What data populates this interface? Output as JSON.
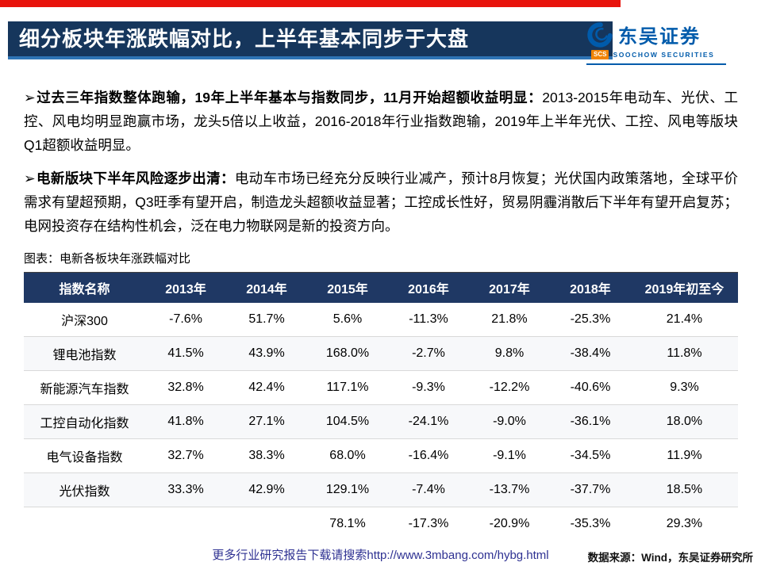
{
  "header": {
    "title": "细分板块年涨跌幅对比，上半年基本同步于大盘"
  },
  "logo": {
    "name": "东吴证券",
    "badge": "SCS",
    "subtitle": "SOOCHOW SECURITIES"
  },
  "bullets": [
    {
      "marker": "➢",
      "lead": "过去三年指数整体跑输，19年上半年基本与指数同步，11月开始超额收益明显：",
      "body": "2013-2015年电动车、光伏、工控、风电均明显跑赢市场，龙头5倍以上收益，2016-2018年行业指数跑输，2019年上半年光伏、工控、风电等版块Q1超额收益明显。"
    },
    {
      "marker": "➢",
      "lead": "电新版块下半年风险逐步出清：",
      "body": "电动车市场已经充分反映行业减产，预计8月恢复；光伏国内政策落地，全球平价需求有望超预期，Q3旺季有望开启，制造龙头超额收益显著；工控成长性好，贸易阴霾消散后下半年有望开启复苏；电网投资存在结构性机会，泛在电力物联网是新的投资方向。"
    }
  ],
  "table": {
    "caption": "图表：电新各板块年涨跌幅对比",
    "headers": [
      "指数名称",
      "2013年",
      "2014年",
      "2015年",
      "2016年",
      "2017年",
      "2018年",
      "2019年初至今"
    ],
    "rows": [
      [
        "沪深300",
        "-7.6%",
        "51.7%",
        "5.6%",
        "-11.3%",
        "21.8%",
        "-25.3%",
        "21.4%"
      ],
      [
        "锂电池指数",
        "41.5%",
        "43.9%",
        "168.0%",
        "-2.7%",
        "9.8%",
        "-38.4%",
        "11.8%"
      ],
      [
        "新能源汽车指数",
        "32.8%",
        "42.4%",
        "117.1%",
        "-9.3%",
        "-12.2%",
        "-40.6%",
        "9.3%"
      ],
      [
        "工控自动化指数",
        "41.8%",
        "27.1%",
        "104.5%",
        "-24.1%",
        "-9.0%",
        "-36.1%",
        "18.0%"
      ],
      [
        "电气设备指数",
        "32.7%",
        "38.3%",
        "68.0%",
        "-16.4%",
        "-9.1%",
        "-34.5%",
        "11.9%"
      ],
      [
        "光伏指数",
        "33.3%",
        "42.9%",
        "129.1%",
        "-7.4%",
        "-13.7%",
        "-37.7%",
        "18.5%"
      ],
      [
        "",
        "",
        "",
        "78.1%",
        "-17.3%",
        "-20.9%",
        "-35.3%",
        "29.3%"
      ]
    ]
  },
  "footer": {
    "download": "更多行业研究报告下载请搜索http://www.3mbang.com/hybg.html",
    "source": "数据来源：Wind，东吴证券研究所"
  },
  "colors": {
    "accent_red": "#e8130c",
    "title_bg": "#16365c",
    "title_underline": "#2e74b5",
    "table_header_bg": "#1f3864",
    "logo_blue": "#005bab",
    "logo_badge_orange": "#f08300",
    "footer_link_blue": "#2e3192"
  }
}
